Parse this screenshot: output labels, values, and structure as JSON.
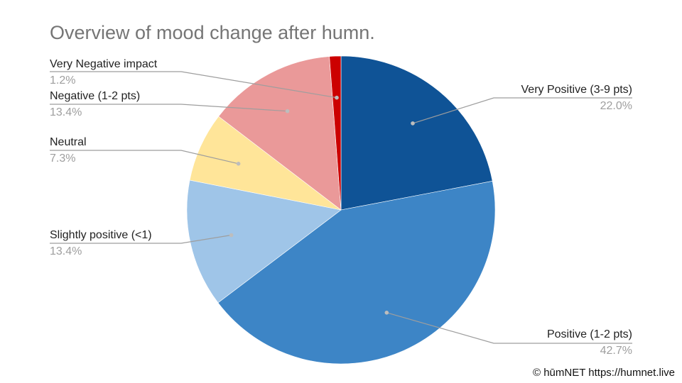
{
  "chart_data": {
    "type": "pie",
    "title": "Overview of mood change after humn.",
    "start_angle_deg": 0,
    "direction": "clockwise",
    "slices": [
      {
        "label": "Very Positive (3-9 pts)",
        "value": 22.0,
        "display": "22.0%",
        "color": "#0f5396"
      },
      {
        "label": "Positive (1-2 pts)",
        "value": 42.7,
        "display": "42.7%",
        "color": "#3d85c6"
      },
      {
        "label": "Slightly positive (<1)",
        "value": 13.4,
        "display": "13.4%",
        "color": "#9fc5e8"
      },
      {
        "label": "Neutral",
        "value": 7.3,
        "display": "7.3%",
        "color": "#ffe599"
      },
      {
        "label": "Negative (1-2 pts)",
        "value": 13.4,
        "display": "13.4%",
        "color": "#ea9999"
      },
      {
        "label": "Very Negative impact",
        "value": 1.2,
        "display": "1.2%",
        "color": "#cc0000"
      }
    ]
  },
  "footer": {
    "copyright": "© hūmNET https://humnet.live"
  }
}
